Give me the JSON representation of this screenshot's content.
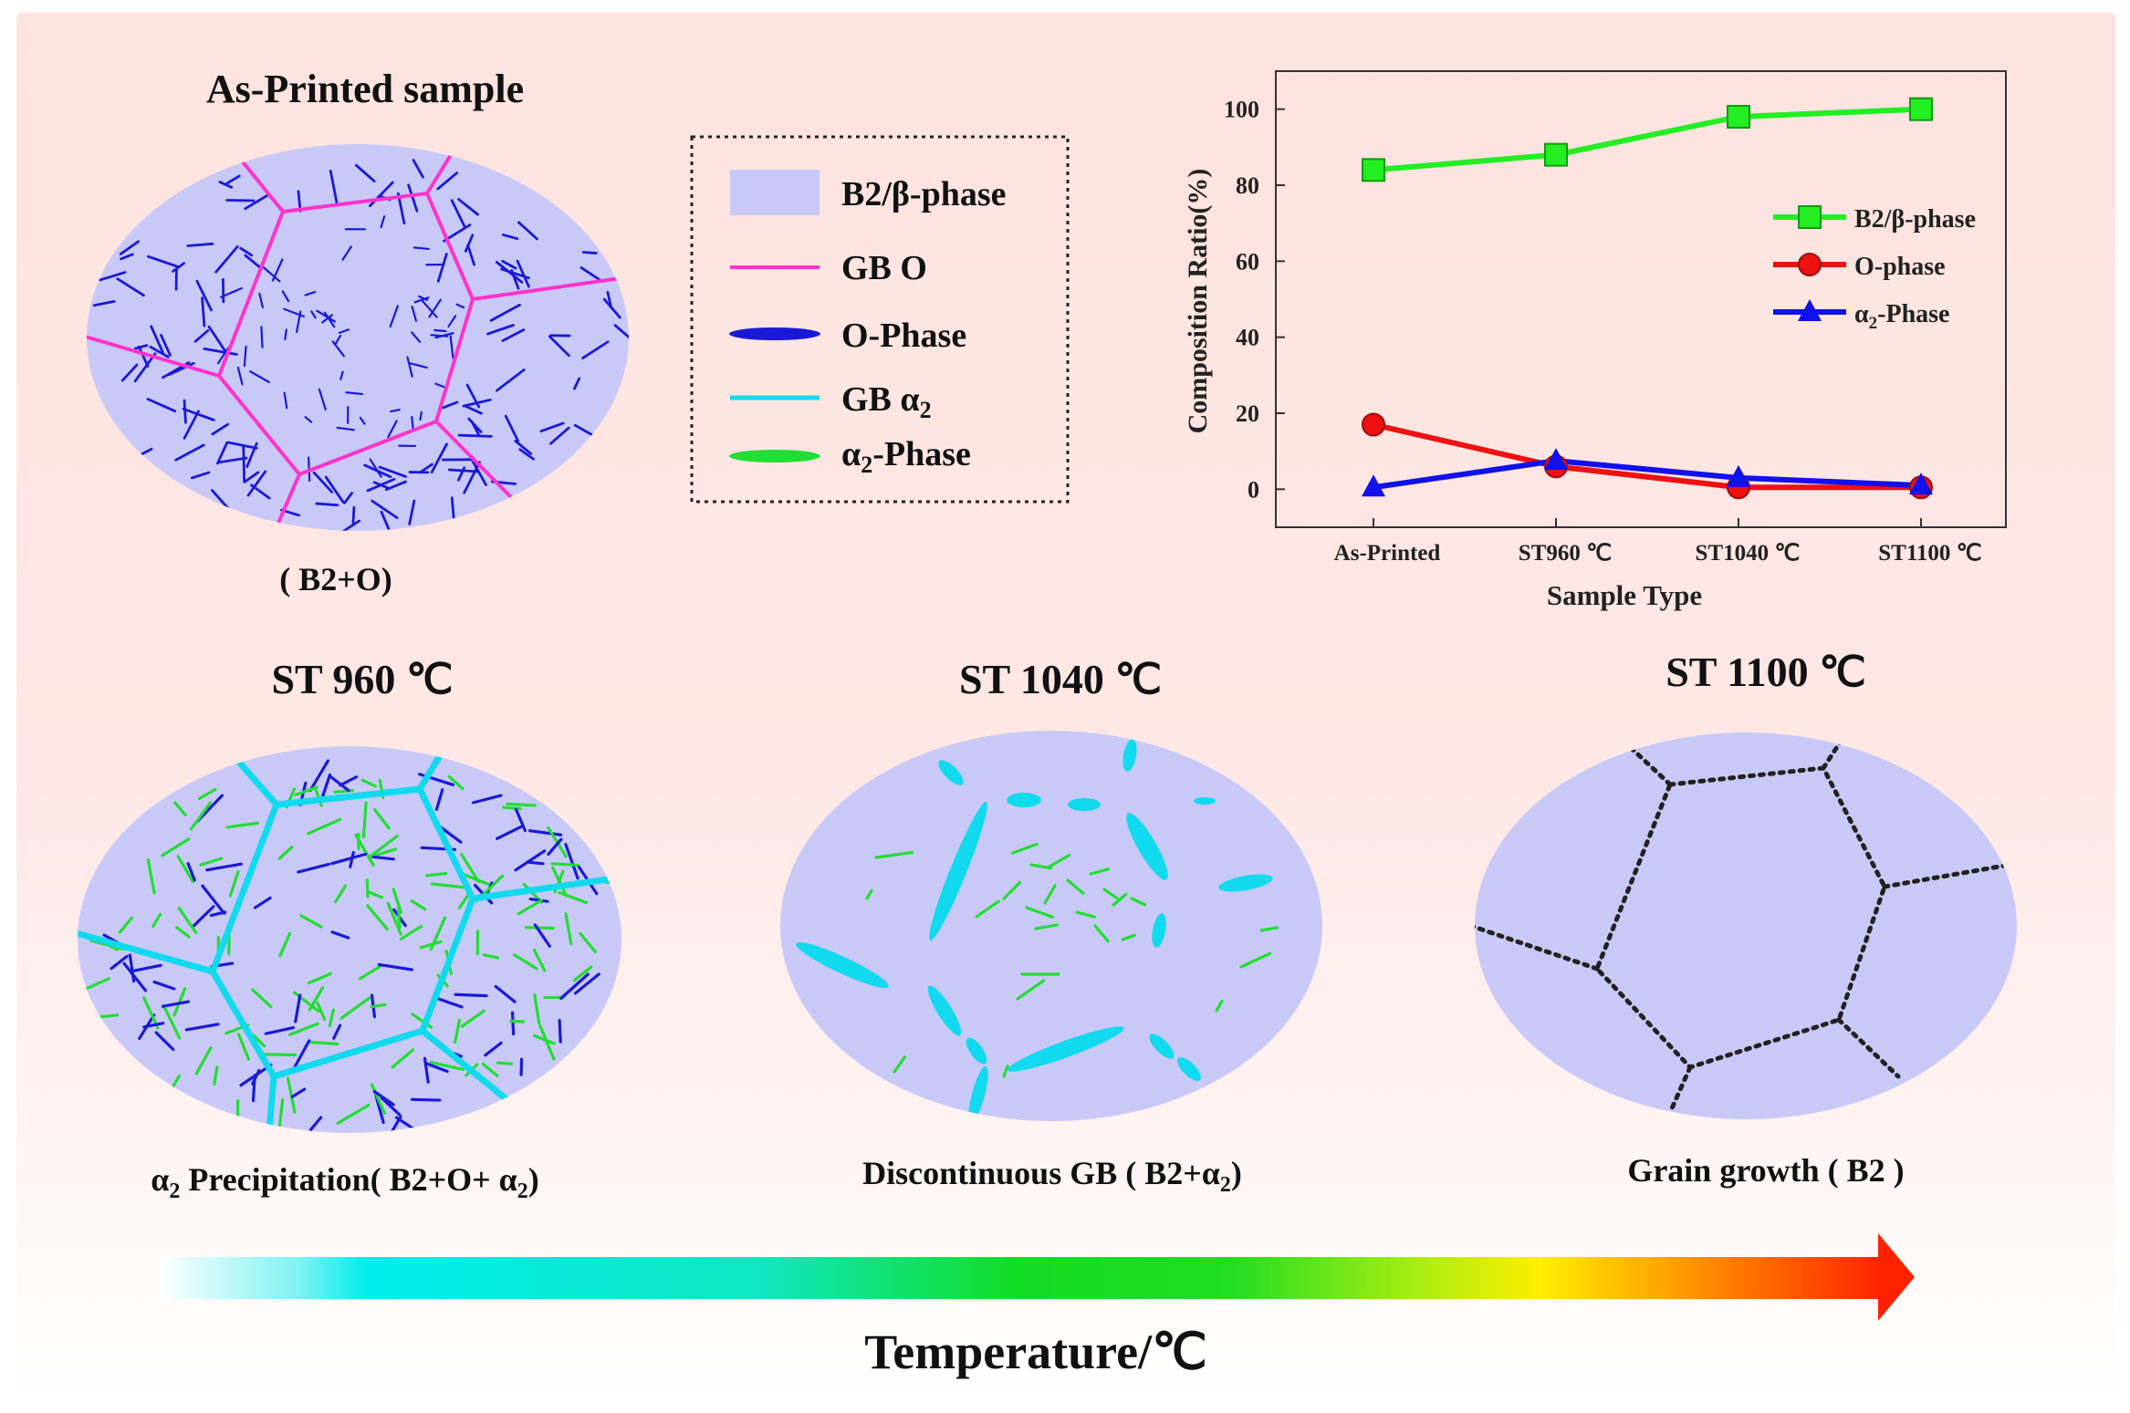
{
  "colors": {
    "matrix": "#c9c9f7",
    "gb_o": "#ff33cc",
    "o_phase": "#1a1ad6",
    "gb_alpha2": "#11d9ee",
    "alpha2_phase": "#22dd33",
    "b2_series": "#22ee22",
    "o_series": "#ee1111",
    "alpha2_series": "#1111ee",
    "dotted_gb": "#222222"
  },
  "panels": {
    "as_printed": {
      "title": "As-Printed sample",
      "caption": "( B2+O)"
    },
    "st960": {
      "title": "ST 960 ℃",
      "caption_prefix": "α",
      "caption_sub": "2",
      "caption_main": " Precipitation( B2+O+ α",
      "caption_sub2": "2",
      "caption_end": ")"
    },
    "st1040": {
      "title": "ST 1040 ℃",
      "caption_main": "Discontinuous GB  ( B2+α",
      "caption_sub": "2",
      "caption_end": ")"
    },
    "st1100": {
      "title": "ST 1100 ℃",
      "caption": "Grain growth  ( B2 )"
    }
  },
  "legend": {
    "items": [
      {
        "label": "B2/β-phase",
        "icon": "matrix-swatch"
      },
      {
        "label": "GB O",
        "icon": "pink-line"
      },
      {
        "label": "O-Phase",
        "icon": "blue-ellipse"
      },
      {
        "label_main": "GB α",
        "label_sub": "2",
        "icon": "cyan-line"
      },
      {
        "label_main": "α",
        "label_sub": "2",
        "label_end": "-Phase",
        "icon": "green-ellipse"
      }
    ]
  },
  "chart_data": {
    "type": "line",
    "categories": [
      "As-Printed",
      "ST960 ℃",
      "ST1040 ℃",
      "ST1100 ℃"
    ],
    "series": [
      {
        "name": "B2/β-phase",
        "marker": "square",
        "values": [
          84,
          88,
          98,
          100
        ]
      },
      {
        "name": "O-phase",
        "marker": "circle",
        "values": [
          17,
          6,
          0.5,
          0.5
        ]
      },
      {
        "name_main": "α",
        "name_sub": "2",
        "name_end": "-Phase",
        "marker": "triangle",
        "values": [
          0.5,
          7.5,
          3,
          1
        ]
      }
    ],
    "xlabel": "Sample Type",
    "ylabel": "Composition Ratio(%)",
    "ylim": [
      -10,
      110
    ],
    "yticks": [
      0,
      20,
      40,
      60,
      80,
      100
    ],
    "legend_position": "right"
  },
  "axis": {
    "label": "Temperature/℃"
  }
}
